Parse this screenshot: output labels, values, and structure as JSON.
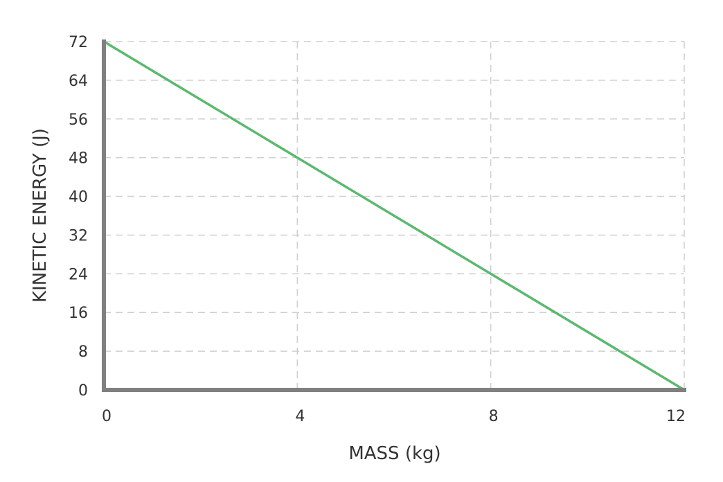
{
  "chart_data": {
    "type": "line",
    "title": "",
    "xlabel": "MASS (kg)",
    "ylabel": "KINETIC ENERGY (J)",
    "xlim": [
      0,
      12
    ],
    "ylim": [
      0,
      72
    ],
    "x_ticks": [
      0,
      4,
      8,
      12
    ],
    "y_ticks": [
      0,
      8,
      16,
      24,
      32,
      40,
      48,
      56,
      64,
      72
    ],
    "grid": true,
    "series": [
      {
        "color": "#5cb870",
        "x": [
          0,
          12
        ],
        "y": [
          72,
          0
        ]
      }
    ]
  }
}
